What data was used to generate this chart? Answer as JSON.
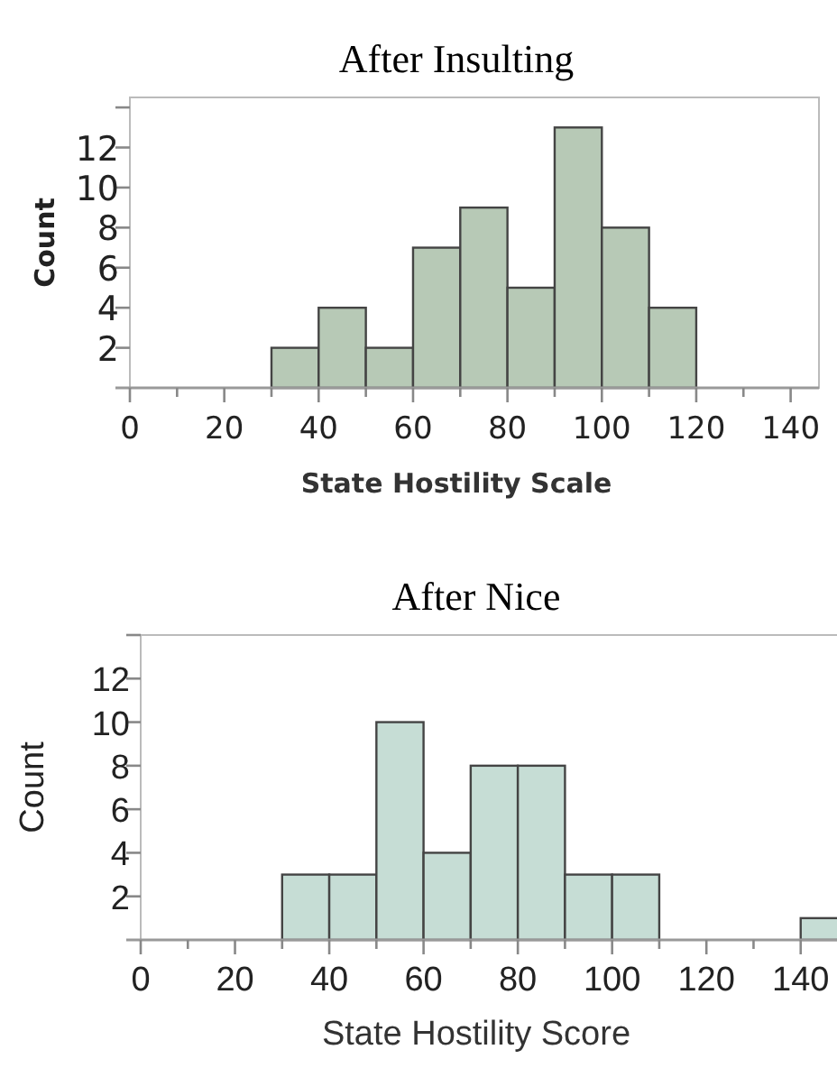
{
  "chart_data": [
    {
      "type": "histogram",
      "title": "After Insulting",
      "xlabel": "State Hostility Scale",
      "ylabel": "Count",
      "bins": [
        30,
        40,
        50,
        60,
        70,
        80,
        90,
        100,
        110,
        120
      ],
      "values": [
        2,
        4,
        2,
        7,
        9,
        5,
        13,
        8,
        4
      ],
      "color": "#b7c9b6",
      "xlim": [
        0,
        146
      ],
      "ylim": [
        0,
        14.5
      ],
      "xticks": [
        0,
        {
          "value": 10,
          "label": null
        },
        20,
        {
          "value": 30,
          "label": null
        },
        40,
        {
          "value": 50,
          "label": null
        },
        60,
        {
          "value": 70,
          "label": null
        },
        80,
        {
          "value": 90,
          "label": null
        },
        100,
        {
          "value": 110,
          "label": null
        },
        120,
        {
          "value": 130,
          "label": null
        },
        140
      ],
      "yticks": [
        2,
        4,
        6,
        8,
        10,
        12,
        {
          "value": 14,
          "label": null
        }
      ],
      "grid": false
    },
    {
      "type": "histogram",
      "title": "After Nice",
      "xlabel": "State Hostility Score",
      "ylabel": "Count",
      "bins": [
        30,
        40,
        50,
        60,
        70,
        80,
        90,
        100,
        110,
        120,
        130,
        140,
        150
      ],
      "values": [
        3,
        3,
        10,
        4,
        8,
        8,
        3,
        3,
        0,
        0,
        0,
        1
      ],
      "color": "#c6ddd5",
      "xlim": [
        0,
        150
      ],
      "ylim": [
        0,
        14
      ],
      "xticks": [
        0,
        {
          "value": 10,
          "label": null
        },
        20,
        {
          "value": 30,
          "label": null
        },
        40,
        {
          "value": 50,
          "label": null
        },
        60,
        {
          "value": 70,
          "label": null
        },
        80,
        {
          "value": 90,
          "label": null
        },
        100,
        {
          "value": 110,
          "label": null
        },
        120,
        {
          "value": 130,
          "label": null
        },
        140
      ],
      "yticks": [
        2,
        4,
        6,
        8,
        10,
        12,
        {
          "value": 14,
          "label": null
        }
      ],
      "grid": false
    }
  ]
}
